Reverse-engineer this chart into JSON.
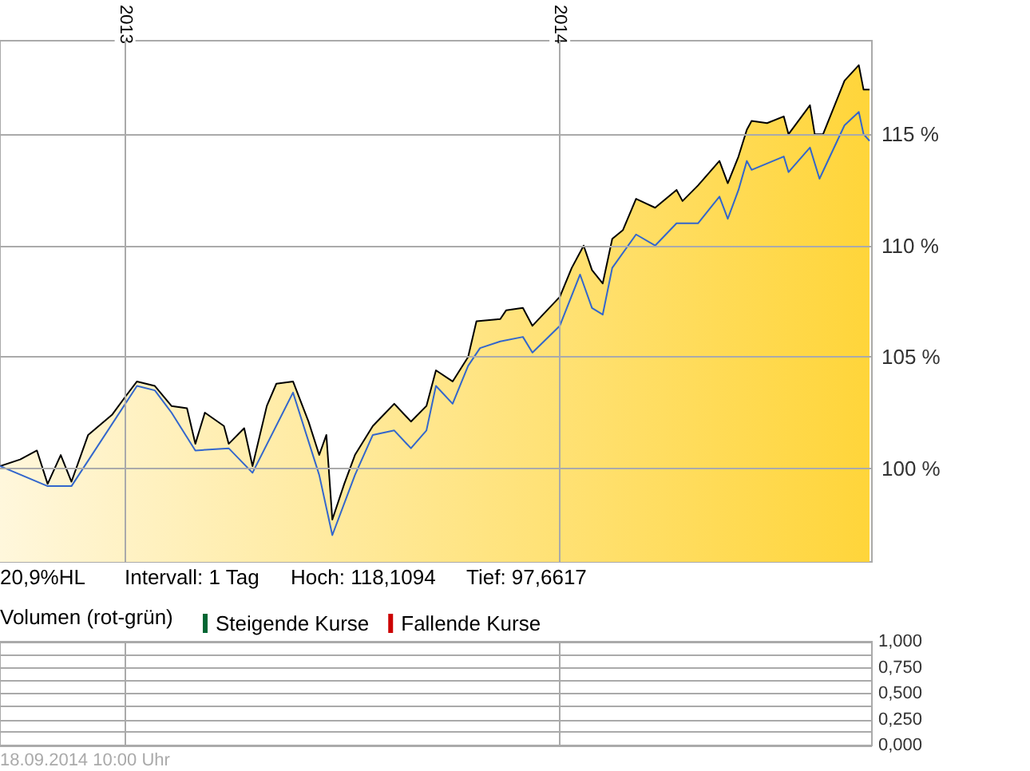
{
  "chart_data": [
    {
      "type": "area",
      "xlim": [
        "2012-09-18",
        "2014-09-20"
      ],
      "xticks": [
        {
          "value": "2013-01-01",
          "label": "2013"
        },
        {
          "value": "2014-01-01",
          "label": "2014"
        }
      ],
      "ylim": [
        95.8,
        119.2
      ],
      "yticks": [
        {
          "value": 100,
          "label": "100 %"
        },
        {
          "value": 105,
          "label": "105 %"
        },
        {
          "value": 110,
          "label": "110 %"
        },
        {
          "value": 115,
          "label": "115 %"
        }
      ],
      "grid": true,
      "annotations": [
        "20,9%HL",
        "Intervall: 1 Tag",
        "Hoch: 118,1094",
        "Tief: 97,6617"
      ],
      "series": [
        {
          "color": "#000000",
          "x": [
            "2012-09-18",
            "2012-10-05",
            "2012-10-19",
            "2012-10-28",
            "2012-11-08",
            "2012-11-17",
            "2012-12-01",
            "2012-12-21",
            "2013-01-01",
            "2013-01-11",
            "2013-01-26",
            "2013-02-09",
            "2013-02-22",
            "2013-03-01",
            "2013-03-09",
            "2013-03-25",
            "2013-03-29",
            "2013-04-11",
            "2013-04-18",
            "2013-04-30",
            "2013-05-08",
            "2013-05-22",
            "2013-06-04",
            "2013-06-13",
            "2013-06-19",
            "2013-06-24",
            "2013-07-04",
            "2013-07-13",
            "2013-07-28",
            "2013-08-15",
            "2013-08-29",
            "2013-09-11",
            "2013-09-19",
            "2013-10-03",
            "2013-10-16",
            "2013-10-23",
            "2013-11-12",
            "2013-11-17",
            "2013-12-01",
            "2013-12-09",
            "2014-01-01",
            "2014-01-11",
            "2014-01-21",
            "2014-01-28",
            "2014-02-06",
            "2014-02-14",
            "2014-02-23",
            "2014-03-06",
            "2014-03-22",
            "2014-04-09",
            "2014-04-14",
            "2014-04-27",
            "2014-05-15",
            "2014-05-22",
            "2014-05-31",
            "2014-06-07",
            "2014-06-11",
            "2014-06-24",
            "2014-07-08",
            "2014-07-12",
            "2014-07-30",
            "2014-08-03",
            "2014-08-10",
            "2014-08-28",
            "2014-09-09",
            "2014-09-13",
            "2014-09-18"
          ],
          "values": [
            100.1,
            100.4,
            100.8,
            99.3,
            100.6,
            99.4,
            101.5,
            102.4,
            103.2,
            103.9,
            103.7,
            102.8,
            102.7,
            101.1,
            102.5,
            101.9,
            101.1,
            101.8,
            100.1,
            102.8,
            103.8,
            103.9,
            102.1,
            100.6,
            101.5,
            97.7,
            99.3,
            100.6,
            101.9,
            102.9,
            102.1,
            102.8,
            104.4,
            103.9,
            105.0,
            106.6,
            106.7,
            107.1,
            107.2,
            106.4,
            107.7,
            109.0,
            110.0,
            108.9,
            108.3,
            110.3,
            110.7,
            112.1,
            111.7,
            112.5,
            112.0,
            112.7,
            113.8,
            112.8,
            114.0,
            115.2,
            115.6,
            115.5,
            115.8,
            115.0,
            116.3,
            115.0,
            115.0,
            117.4,
            118.1,
            117.0,
            117.0
          ]
        },
        {
          "type": "line",
          "color": "#3366cc",
          "x": [
            "2012-09-18",
            "2012-10-28",
            "2012-11-17",
            "2013-01-11",
            "2013-01-26",
            "2013-02-09",
            "2013-03-01",
            "2013-03-29",
            "2013-04-18",
            "2013-05-22",
            "2013-06-13",
            "2013-06-24",
            "2013-07-13",
            "2013-07-28",
            "2013-08-15",
            "2013-08-29",
            "2013-09-11",
            "2013-09-19",
            "2013-10-03",
            "2013-10-16",
            "2013-10-26",
            "2013-11-12",
            "2013-12-01",
            "2013-12-09",
            "2014-01-01",
            "2014-01-18",
            "2014-01-28",
            "2014-02-06",
            "2014-02-14",
            "2014-03-06",
            "2014-03-22",
            "2014-04-09",
            "2014-04-27",
            "2014-05-15",
            "2014-05-22",
            "2014-05-31",
            "2014-06-07",
            "2014-06-11",
            "2014-07-08",
            "2014-07-12",
            "2014-07-30",
            "2014-08-07",
            "2014-08-28",
            "2014-09-09",
            "2014-09-13",
            "2014-09-18"
          ],
          "values": [
            100.1,
            99.2,
            99.2,
            103.7,
            103.5,
            102.5,
            100.8,
            100.9,
            99.8,
            103.4,
            99.7,
            97.0,
            99.7,
            101.5,
            101.7,
            100.9,
            101.7,
            103.7,
            102.9,
            104.6,
            105.4,
            105.7,
            105.9,
            105.2,
            106.4,
            108.7,
            107.2,
            106.9,
            109.0,
            110.5,
            110.0,
            111.0,
            111.0,
            112.2,
            111.2,
            112.5,
            113.8,
            113.4,
            114.0,
            113.3,
            114.4,
            113.0,
            115.4,
            116.0,
            115.0,
            114.7
          ]
        }
      ]
    },
    {
      "type": "bar",
      "legend_title": "Volumen (rot-grün)",
      "legend": "top left",
      "tick_labels": "y",
      "grid": true,
      "ylim": [
        0,
        1
      ],
      "yticks": [
        {
          "value": 0,
          "label": "0,000"
        },
        {
          "value": 0.125,
          "label": null
        },
        {
          "value": 0.25,
          "label": "0,250"
        },
        {
          "value": 0.375,
          "label": null
        },
        {
          "value": 0.5,
          "label": "0,500"
        },
        {
          "value": 0.625,
          "label": null
        },
        {
          "value": 0.75,
          "label": "0,750"
        },
        {
          "value": 0.875,
          "label": null
        },
        {
          "value": 1,
          "label": "1,000"
        }
      ],
      "annotations": [
        "18.09.2014 10:00 Uhr"
      ],
      "series": [
        {
          "name": "Steigende Kurse",
          "color": "#006633"
        },
        {
          "name": "Fallende Kurse",
          "color": "#cc0000"
        }
      ]
    }
  ]
}
